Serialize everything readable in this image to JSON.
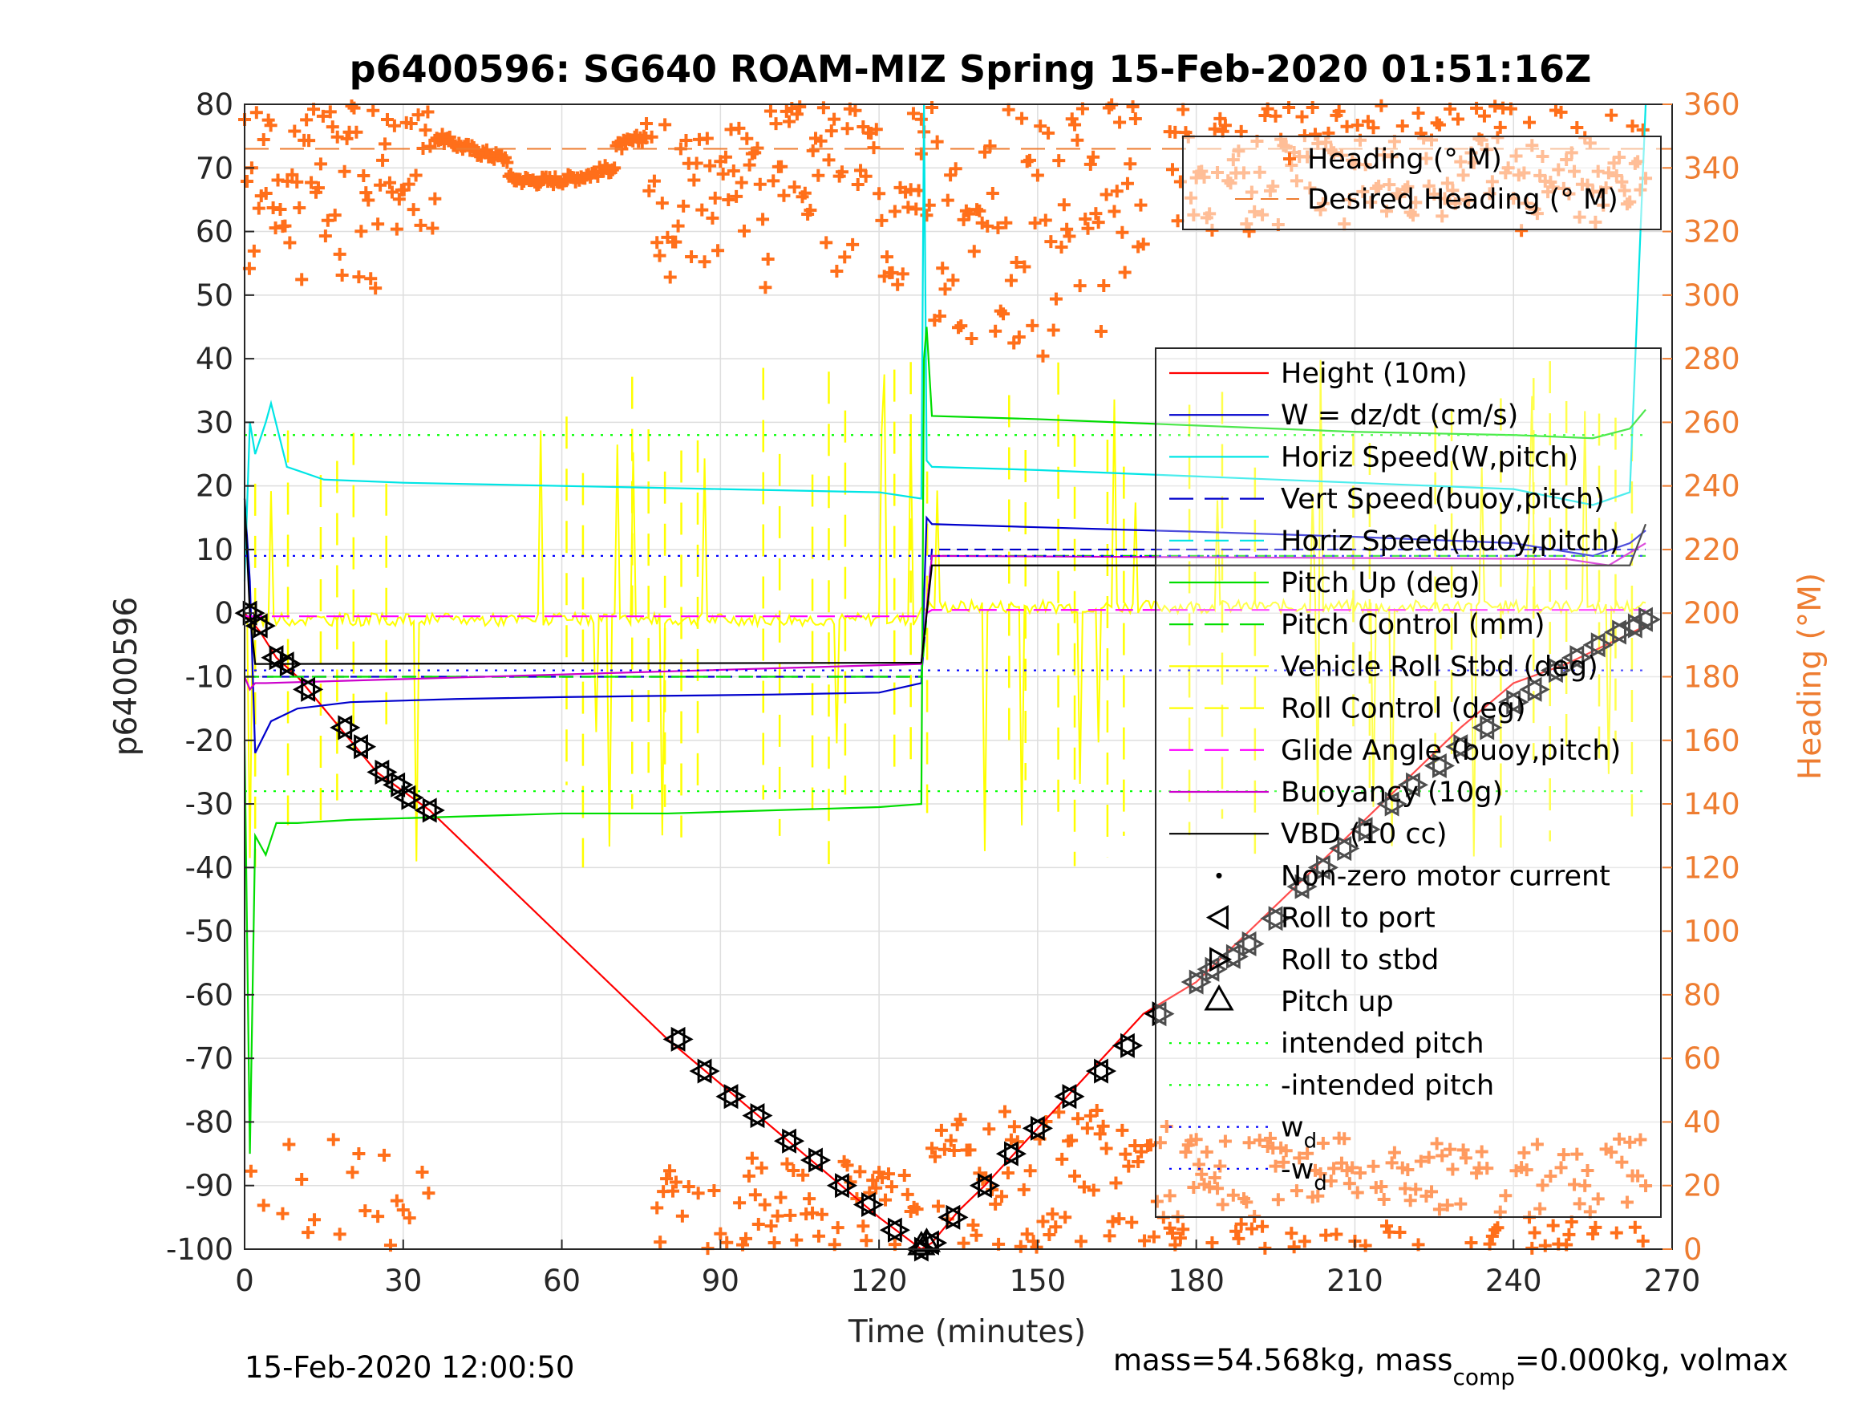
{
  "chart_data": {
    "type": "line",
    "title": "p6400596: SG640 ROAM-MIZ Spring 15-Feb-2020 01:51:16Z",
    "xlabel": "Time (minutes)",
    "ylabel": "p6400596",
    "y2label": "Heading (°M)",
    "xlim": [
      0,
      270
    ],
    "ylim": [
      -100,
      80
    ],
    "y2lim": [
      0,
      360
    ],
    "x_ticks": [
      "0",
      "30",
      "60",
      "90",
      "120",
      "150",
      "180",
      "210",
      "240",
      "270"
    ],
    "y_ticks": [
      "80",
      "70",
      "60",
      "50",
      "40",
      "30",
      "20",
      "10",
      "0",
      "-10",
      "-20",
      "-30",
      "-40",
      "-50",
      "-60",
      "-70",
      "-80",
      "-90",
      "-100"
    ],
    "y2_ticks": [
      "360",
      "340",
      "320",
      "300",
      "280",
      "260",
      "240",
      "220",
      "200",
      "180",
      "160",
      "140",
      "120",
      "100",
      "80",
      "60",
      "40",
      "20",
      "0"
    ],
    "grid": true,
    "legend_heading": [
      "Heading (° M)",
      "Desired Heading (° M)"
    ],
    "legend_main": [
      {
        "label": "Height (10m)",
        "color": "#ff0000",
        "style": "solid"
      },
      {
        "label": "W = dz/dt (cm/s)",
        "color": "#0000cc",
        "style": "solid"
      },
      {
        "label": "Horiz Speed(W,pitch)",
        "color": "#00e5e5",
        "style": "solid"
      },
      {
        "label": "Vert Speed(buoy,pitch)",
        "color": "#0000cc",
        "style": "dashed"
      },
      {
        "label": "Horiz Speed(buoy,pitch)",
        "color": "#00e5e5",
        "style": "dashed"
      },
      {
        "label": "Pitch Up (deg)",
        "color": "#00dd00",
        "style": "solid"
      },
      {
        "label": "Pitch Control (mm)",
        "color": "#00dd00",
        "style": "dashed"
      },
      {
        "label": "Vehicle Roll Stbd (deg)",
        "color": "#ffff00",
        "style": "solid"
      },
      {
        "label": "Roll Control (deg)",
        "color": "#ffff00",
        "style": "dashed"
      },
      {
        "label": "Glide Angle (buoy,pitch)",
        "color": "#ff00ff",
        "style": "dashed"
      },
      {
        "label": "Buoyancy (10g)",
        "color": "#cc00cc",
        "style": "solid"
      },
      {
        "label": "VBD (10 cc)",
        "color": "#000000",
        "style": "solid"
      },
      {
        "label": "Non-zero motor current",
        "color": "#000000",
        "style": "dot"
      },
      {
        "label": "Roll to port",
        "color": "#000000",
        "style": "tri-left"
      },
      {
        "label": "Roll to stbd",
        "color": "#000000",
        "style": "tri-right"
      },
      {
        "label": "Pitch up",
        "color": "#000000",
        "style": "tri-up"
      },
      {
        "label": "intended pitch",
        "color": "#00ff00",
        "style": "dotted"
      },
      {
        "label": "-intended pitch",
        "color": "#00ff00",
        "style": "dotted"
      },
      {
        "label": "w",
        "sub": "d",
        "color": "#0000ff",
        "style": "dotted"
      },
      {
        "label": "-w",
        "sub": "d",
        "color": "#0000ff",
        "style": "dotted"
      }
    ],
    "series": [
      {
        "name": "Height (10m)",
        "color": "#ff0000",
        "x": [
          0,
          1,
          3,
          6,
          10,
          15,
          20,
          25,
          30,
          35,
          80,
          90,
          100,
          110,
          120,
          128,
          130,
          135,
          140,
          150,
          160,
          170,
          180,
          190,
          200,
          210,
          220,
          230,
          240,
          250,
          260,
          265
        ],
        "y": [
          0,
          -1,
          -3,
          -7,
          -10,
          -15,
          -20,
          -25,
          -28,
          -31,
          -67,
          -74,
          -81,
          -88,
          -95,
          -100,
          -99,
          -94,
          -90,
          -81,
          -72,
          -63,
          -58,
          -50,
          -42,
          -34,
          -26,
          -18,
          -11,
          -8,
          -4,
          -2
        ]
      },
      {
        "name": "W = dz/dt (cm/s)",
        "color": "#0000cc",
        "x": [
          0,
          1,
          2,
          5,
          10,
          20,
          40,
          60,
          80,
          100,
          120,
          128,
          129,
          130,
          150,
          180,
          210,
          240,
          255,
          262,
          265
        ],
        "y": [
          18,
          5,
          -22,
          -17,
          -15,
          -14,
          -13.5,
          -13.2,
          -13,
          -12.8,
          -12.5,
          -11,
          15,
          14,
          13.5,
          12.8,
          12,
          11,
          9,
          11,
          13
        ]
      },
      {
        "name": "Horiz Speed(W,pitch)",
        "color": "#00e5e5",
        "x": [
          0,
          1,
          2,
          4,
          5,
          8,
          15,
          30,
          60,
          90,
          120,
          128,
          128.5,
          129,
          130,
          150,
          180,
          210,
          240,
          255,
          262,
          265
        ],
        "y": [
          5,
          30,
          25,
          30,
          33,
          23,
          21,
          20.5,
          20,
          19.5,
          19,
          18,
          80,
          24,
          23,
          22.5,
          21.5,
          20.5,
          19.5,
          17,
          19,
          80
        ]
      },
      {
        "name": "Vert Speed(buoy,pitch)",
        "color": "#0000cc",
        "dash": "14,8",
        "x": [
          0,
          5,
          128,
          130,
          265
        ],
        "y": [
          -10,
          -10,
          -10,
          10,
          10
        ]
      },
      {
        "name": "Pitch Up (deg)",
        "color": "#00dd00",
        "x": [
          0,
          1,
          1.5,
          2,
          4,
          6,
          10,
          20,
          40,
          60,
          80,
          100,
          120,
          128,
          128.5,
          129,
          130,
          150,
          180,
          210,
          240,
          255,
          262,
          265
        ],
        "y": [
          -20,
          -85,
          -60,
          -35,
          -38,
          -33,
          -33,
          -32.5,
          -32,
          -31.5,
          -31.5,
          -31,
          -30.5,
          -30,
          40,
          45,
          31,
          30.5,
          29.5,
          28.5,
          28,
          27.5,
          29,
          32
        ]
      },
      {
        "name": "Pitch Control (mm)",
        "color": "#00dd00",
        "dash": "18,10",
        "x": [
          0,
          128,
          130,
          265
        ],
        "y": [
          -10,
          -10,
          9,
          9
        ]
      },
      {
        "name": "Glide Angle (buoy,pitch)",
        "color": "#ff00ff",
        "dash": "22,12",
        "x": [
          0,
          128,
          130,
          265
        ],
        "y": [
          -0.5,
          -0.5,
          0.5,
          0.5
        ]
      },
      {
        "name": "Buoyancy (10g)",
        "color": "#cc00cc",
        "x": [
          0,
          1,
          2,
          4,
          128,
          130,
          250,
          258,
          265
        ],
        "y": [
          -10,
          -12,
          -11,
          -11,
          -8,
          9,
          8.5,
          7.5,
          11
        ]
      },
      {
        "name": "VBD (10 cc)",
        "color": "#000000",
        "x": [
          0,
          1,
          2,
          128,
          130,
          262,
          265
        ],
        "y": [
          18,
          0,
          -8,
          -7.8,
          7.5,
          7.5,
          14
        ]
      },
      {
        "name": "intended pitch",
        "color": "#00ff00",
        "dash": "3,9",
        "x": [
          0,
          265
        ],
        "y": [
          28,
          28
        ]
      },
      {
        "name": "-intended pitch",
        "color": "#00ff00",
        "dash": "3,9",
        "x": [
          0,
          265
        ],
        "y": [
          -28,
          -28
        ]
      },
      {
        "name": "w d",
        "color": "#0000ff",
        "dash": "3,9",
        "x": [
          0,
          265
        ],
        "y": [
          9,
          9
        ]
      },
      {
        "name": "-w d",
        "color": "#0000ff",
        "dash": "3,9",
        "x": [
          0,
          265
        ],
        "y": [
          -9,
          -9
        ]
      }
    ],
    "desired_heading": {
      "color": "#ee7d31",
      "y2": 346
    },
    "roll_port_markers": {
      "x": [
        1,
        3,
        6,
        8,
        12,
        19,
        22,
        26,
        29,
        31,
        35,
        82,
        87,
        92,
        97,
        103,
        108,
        113,
        118,
        123,
        128,
        130,
        134,
        140,
        145,
        150,
        156,
        162,
        167,
        173,
        180,
        183,
        187,
        190,
        195,
        200,
        204,
        208,
        212,
        217,
        221,
        226,
        230,
        235,
        240,
        244,
        248,
        252,
        256,
        260,
        263,
        265
      ],
      "y": [
        0,
        -2,
        -7,
        -8,
        -12,
        -18,
        -21,
        -25,
        -27,
        -29,
        -31,
        -67,
        -72,
        -76,
        -79,
        -83,
        -86,
        -90,
        -93,
        -97,
        -100,
        -99,
        -95,
        -90,
        -85,
        -81,
        -76,
        -72,
        -68,
        -63,
        -58,
        -56,
        -54,
        -52,
        -48,
        -43,
        -40,
        -37,
        -34,
        -30,
        -27,
        -24,
        -21,
        -18,
        -14,
        -12,
        -9,
        -7,
        -5,
        -3,
        -2,
        -1
      ]
    },
    "pitch_up_markers": {
      "x": [
        128,
        129
      ],
      "y": [
        -99.5,
        -99
      ]
    }
  },
  "footer": {
    "left": "15-Feb-2020 12:00:50",
    "right_a": "mass=54.568kg, mass",
    "right_sub": "comp",
    "right_b": "=0.000kg, volmax"
  }
}
